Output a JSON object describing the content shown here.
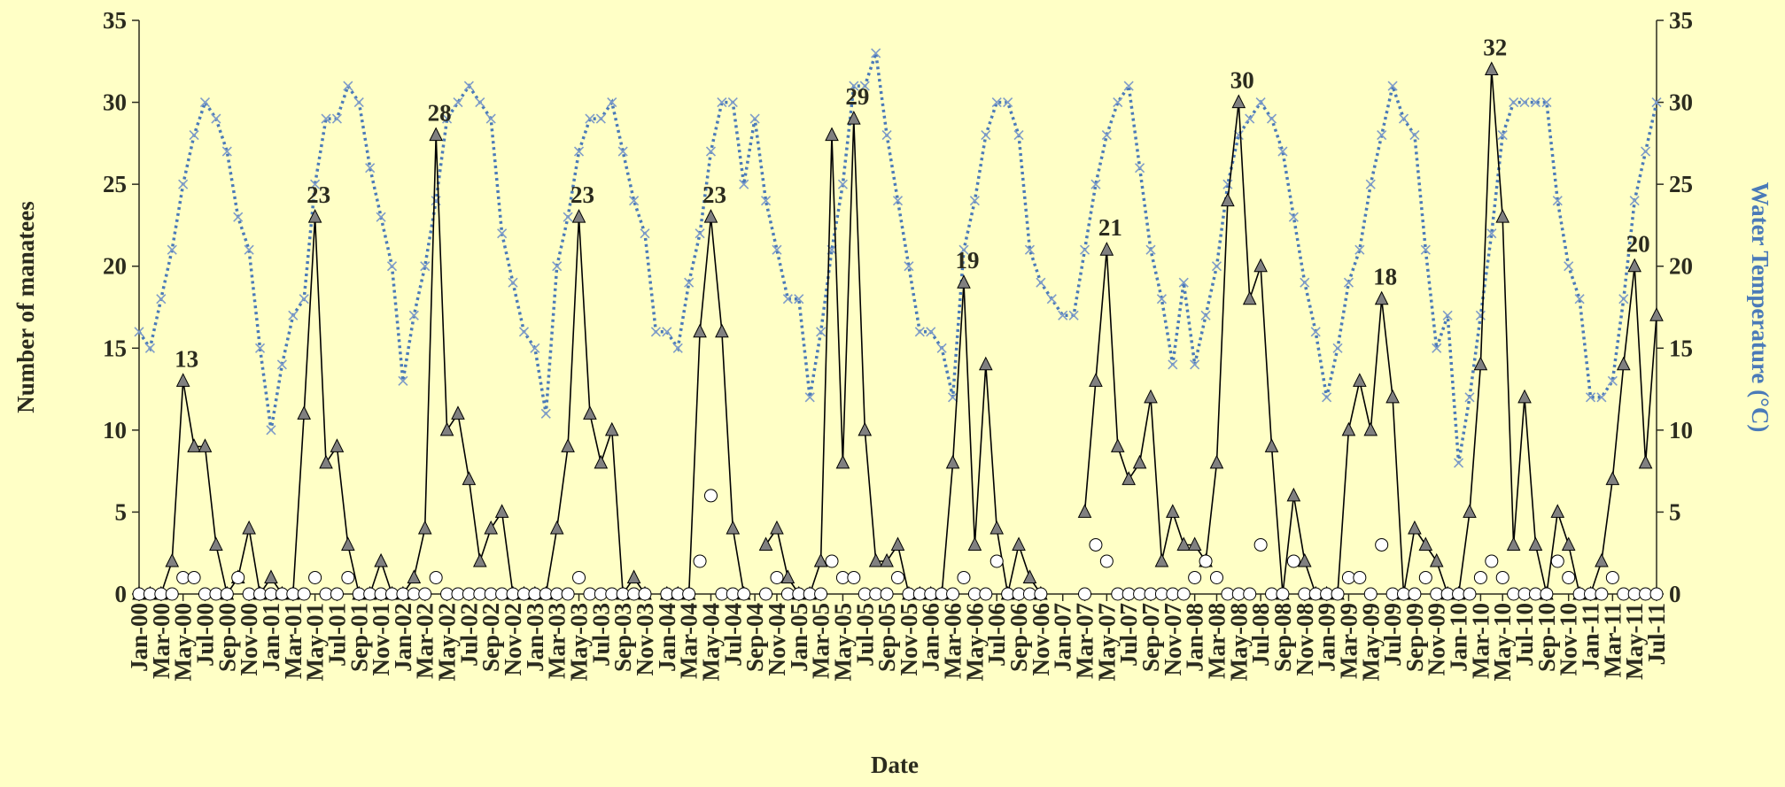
{
  "chart_data": {
    "type": "line",
    "x_label": "Date",
    "y_label": "Number of manatees",
    "y2_label": "Water Temperature (°C)",
    "categories": [
      "Jan-00",
      null,
      "Mar-00",
      null,
      "May-00",
      null,
      "Jul-00",
      null,
      "Sep-00",
      null,
      "Nov-00",
      null,
      "Jan-01",
      null,
      "Mar-01",
      null,
      "May-01",
      null,
      "Jul-01",
      null,
      "Sep-01",
      null,
      "Nov-01",
      null,
      "Jan-02",
      null,
      "Mar-02",
      null,
      "May-02",
      null,
      "Jul-02",
      null,
      "Sep-02",
      null,
      "Nov-02",
      null,
      "Jan-03",
      null,
      "Mar-03",
      null,
      "May-03",
      null,
      "Jul-03",
      null,
      "Sep-03",
      null,
      "Nov-03",
      null,
      "Jan-04",
      null,
      "Mar-04",
      null,
      "May-04",
      null,
      "Jul-04",
      null,
      "Sep-04",
      null,
      "Nov-04",
      null,
      "Jan-05",
      null,
      "Mar-05",
      null,
      "May-05",
      null,
      "Jul-05",
      null,
      "Sep-05",
      null,
      "Nov-05",
      null,
      "Jan-06",
      null,
      "Mar-06",
      null,
      "May-06",
      null,
      "Jul-06",
      null,
      "Sep-06",
      null,
      "Nov-06",
      null,
      "Jan-07",
      null,
      "Mar-07",
      null,
      "May-07",
      null,
      "Jul-07",
      null,
      "Sep-07",
      null,
      "Nov-07",
      null,
      "Jan-08",
      null,
      "Mar-08",
      null,
      "May-08",
      null,
      "Jul-08",
      null,
      "Sep-08",
      null,
      "Nov-08",
      null,
      "Jan-09",
      null,
      "Mar-09",
      null,
      "May-09",
      null,
      "Jul-09",
      null,
      "Sep-09",
      null,
      "Nov-09",
      null,
      "Jan-10",
      null,
      "Mar-10",
      null,
      "May-10",
      null,
      "Jul-10",
      null,
      "Sep-10",
      null,
      "Nov-10",
      null,
      "Jan-11",
      null,
      "Mar-11",
      null,
      "May-11",
      null,
      "Jul-11"
    ],
    "series": [
      {
        "color": "#808080",
        "line_color": "#000000",
        "marker": "triangle",
        "line": true,
        "dash": false,
        "data_labels": "annual-max",
        "values": [
          0,
          0,
          0,
          2,
          13,
          9,
          9,
          3,
          0,
          1,
          4,
          0,
          1,
          0,
          0,
          11,
          23,
          8,
          9,
          3,
          0,
          0,
          2,
          0,
          0,
          1,
          4,
          28,
          10,
          11,
          7,
          2,
          4,
          5,
          0,
          0,
          0,
          0,
          4,
          9,
          23,
          11,
          8,
          10,
          0,
          1,
          0,
          null,
          0,
          0,
          0,
          16,
          23,
          16,
          4,
          0,
          null,
          3,
          4,
          1,
          0,
          0,
          2,
          28,
          8,
          29,
          10,
          2,
          2,
          3,
          0,
          0,
          0,
          0,
          8,
          19,
          3,
          14,
          4,
          0,
          3,
          1,
          0,
          null,
          null,
          null,
          5,
          13,
          21,
          9,
          7,
          8,
          12,
          2,
          5,
          3,
          3,
          2,
          8,
          24,
          30,
          18,
          20,
          9,
          0,
          6,
          2,
          0,
          0,
          0,
          10,
          13,
          10,
          18,
          12,
          0,
          4,
          3,
          2,
          0,
          0,
          5,
          14,
          32,
          23,
          3,
          12,
          3,
          0,
          5,
          3,
          0,
          0,
          2,
          7,
          14,
          20,
          8,
          17
        ]
      },
      {
        "color": "#ffffff",
        "line_color": "#ffffff",
        "marker": "circle",
        "line": false,
        "dash": false,
        "values": [
          0,
          0,
          0,
          0,
          1,
          1,
          0,
          0,
          0,
          1,
          0,
          0,
          0,
          0,
          0,
          0,
          1,
          0,
          0,
          1,
          0,
          0,
          0,
          0,
          0,
          0,
          0,
          1,
          0,
          0,
          0,
          0,
          0,
          0,
          0,
          0,
          0,
          0,
          0,
          0,
          1,
          0,
          0,
          0,
          0,
          0,
          0,
          null,
          0,
          0,
          0,
          2,
          6,
          0,
          0,
          0,
          null,
          0,
          1,
          0,
          0,
          0,
          0,
          2,
          1,
          1,
          0,
          0,
          0,
          1,
          0,
          0,
          0,
          0,
          0,
          1,
          0,
          0,
          2,
          0,
          0,
          0,
          0,
          null,
          null,
          null,
          0,
          3,
          2,
          0,
          0,
          0,
          0,
          0,
          0,
          0,
          1,
          2,
          1,
          0,
          0,
          0,
          3,
          0,
          0,
          2,
          0,
          0,
          0,
          0,
          1,
          1,
          0,
          3,
          0,
          0,
          0,
          1,
          0,
          0,
          0,
          0,
          1,
          2,
          1,
          0,
          0,
          0,
          0,
          2,
          1,
          0,
          0,
          0,
          1,
          0,
          0,
          0,
          0
        ]
      },
      {
        "color": "#7f9cc8",
        "line_color": "#4a7ab8",
        "marker": "x",
        "line": true,
        "dash": true,
        "axis": "y2",
        "values": [
          16,
          15,
          18,
          21,
          25,
          28,
          30,
          29,
          27,
          23,
          21,
          15,
          10,
          14,
          17,
          18,
          25,
          29,
          29,
          31,
          30,
          26,
          23,
          20,
          13,
          17,
          20,
          24,
          29,
          30,
          31,
          30,
          29,
          22,
          19,
          16,
          15,
          11,
          20,
          23,
          27,
          29,
          29,
          30,
          27,
          24,
          22,
          16,
          16,
          15,
          19,
          22,
          27,
          30,
          30,
          25,
          29,
          24,
          21,
          18,
          18,
          12,
          16,
          21,
          25,
          31,
          31,
          33,
          28,
          24,
          20,
          16,
          16,
          15,
          12,
          21,
          24,
          28,
          30,
          30,
          28,
          21,
          19,
          18,
          17,
          17,
          21,
          25,
          28,
          30,
          31,
          26,
          21,
          18,
          14,
          19,
          14,
          17,
          20,
          25,
          28,
          29,
          30,
          29,
          27,
          23,
          19,
          16,
          12,
          15,
          19,
          21,
          25,
          28,
          31,
          29,
          28,
          21,
          15,
          17,
          8,
          12,
          17,
          22,
          28,
          30,
          30,
          30,
          30,
          24,
          20,
          18,
          12,
          12,
          13,
          18,
          24,
          27,
          30
        ]
      }
    ],
    "ylim": [
      0,
      35
    ],
    "yticks": [
      0,
      5,
      10,
      15,
      20,
      25,
      30,
      35
    ],
    "y2lim": [
      0,
      35
    ],
    "y2ticks": [
      0,
      5,
      10,
      15,
      20,
      25,
      30,
      35
    ],
    "axis_color": "#2b2b1e",
    "y2_color": "#4a7ab8",
    "background": "#ffffc6"
  }
}
